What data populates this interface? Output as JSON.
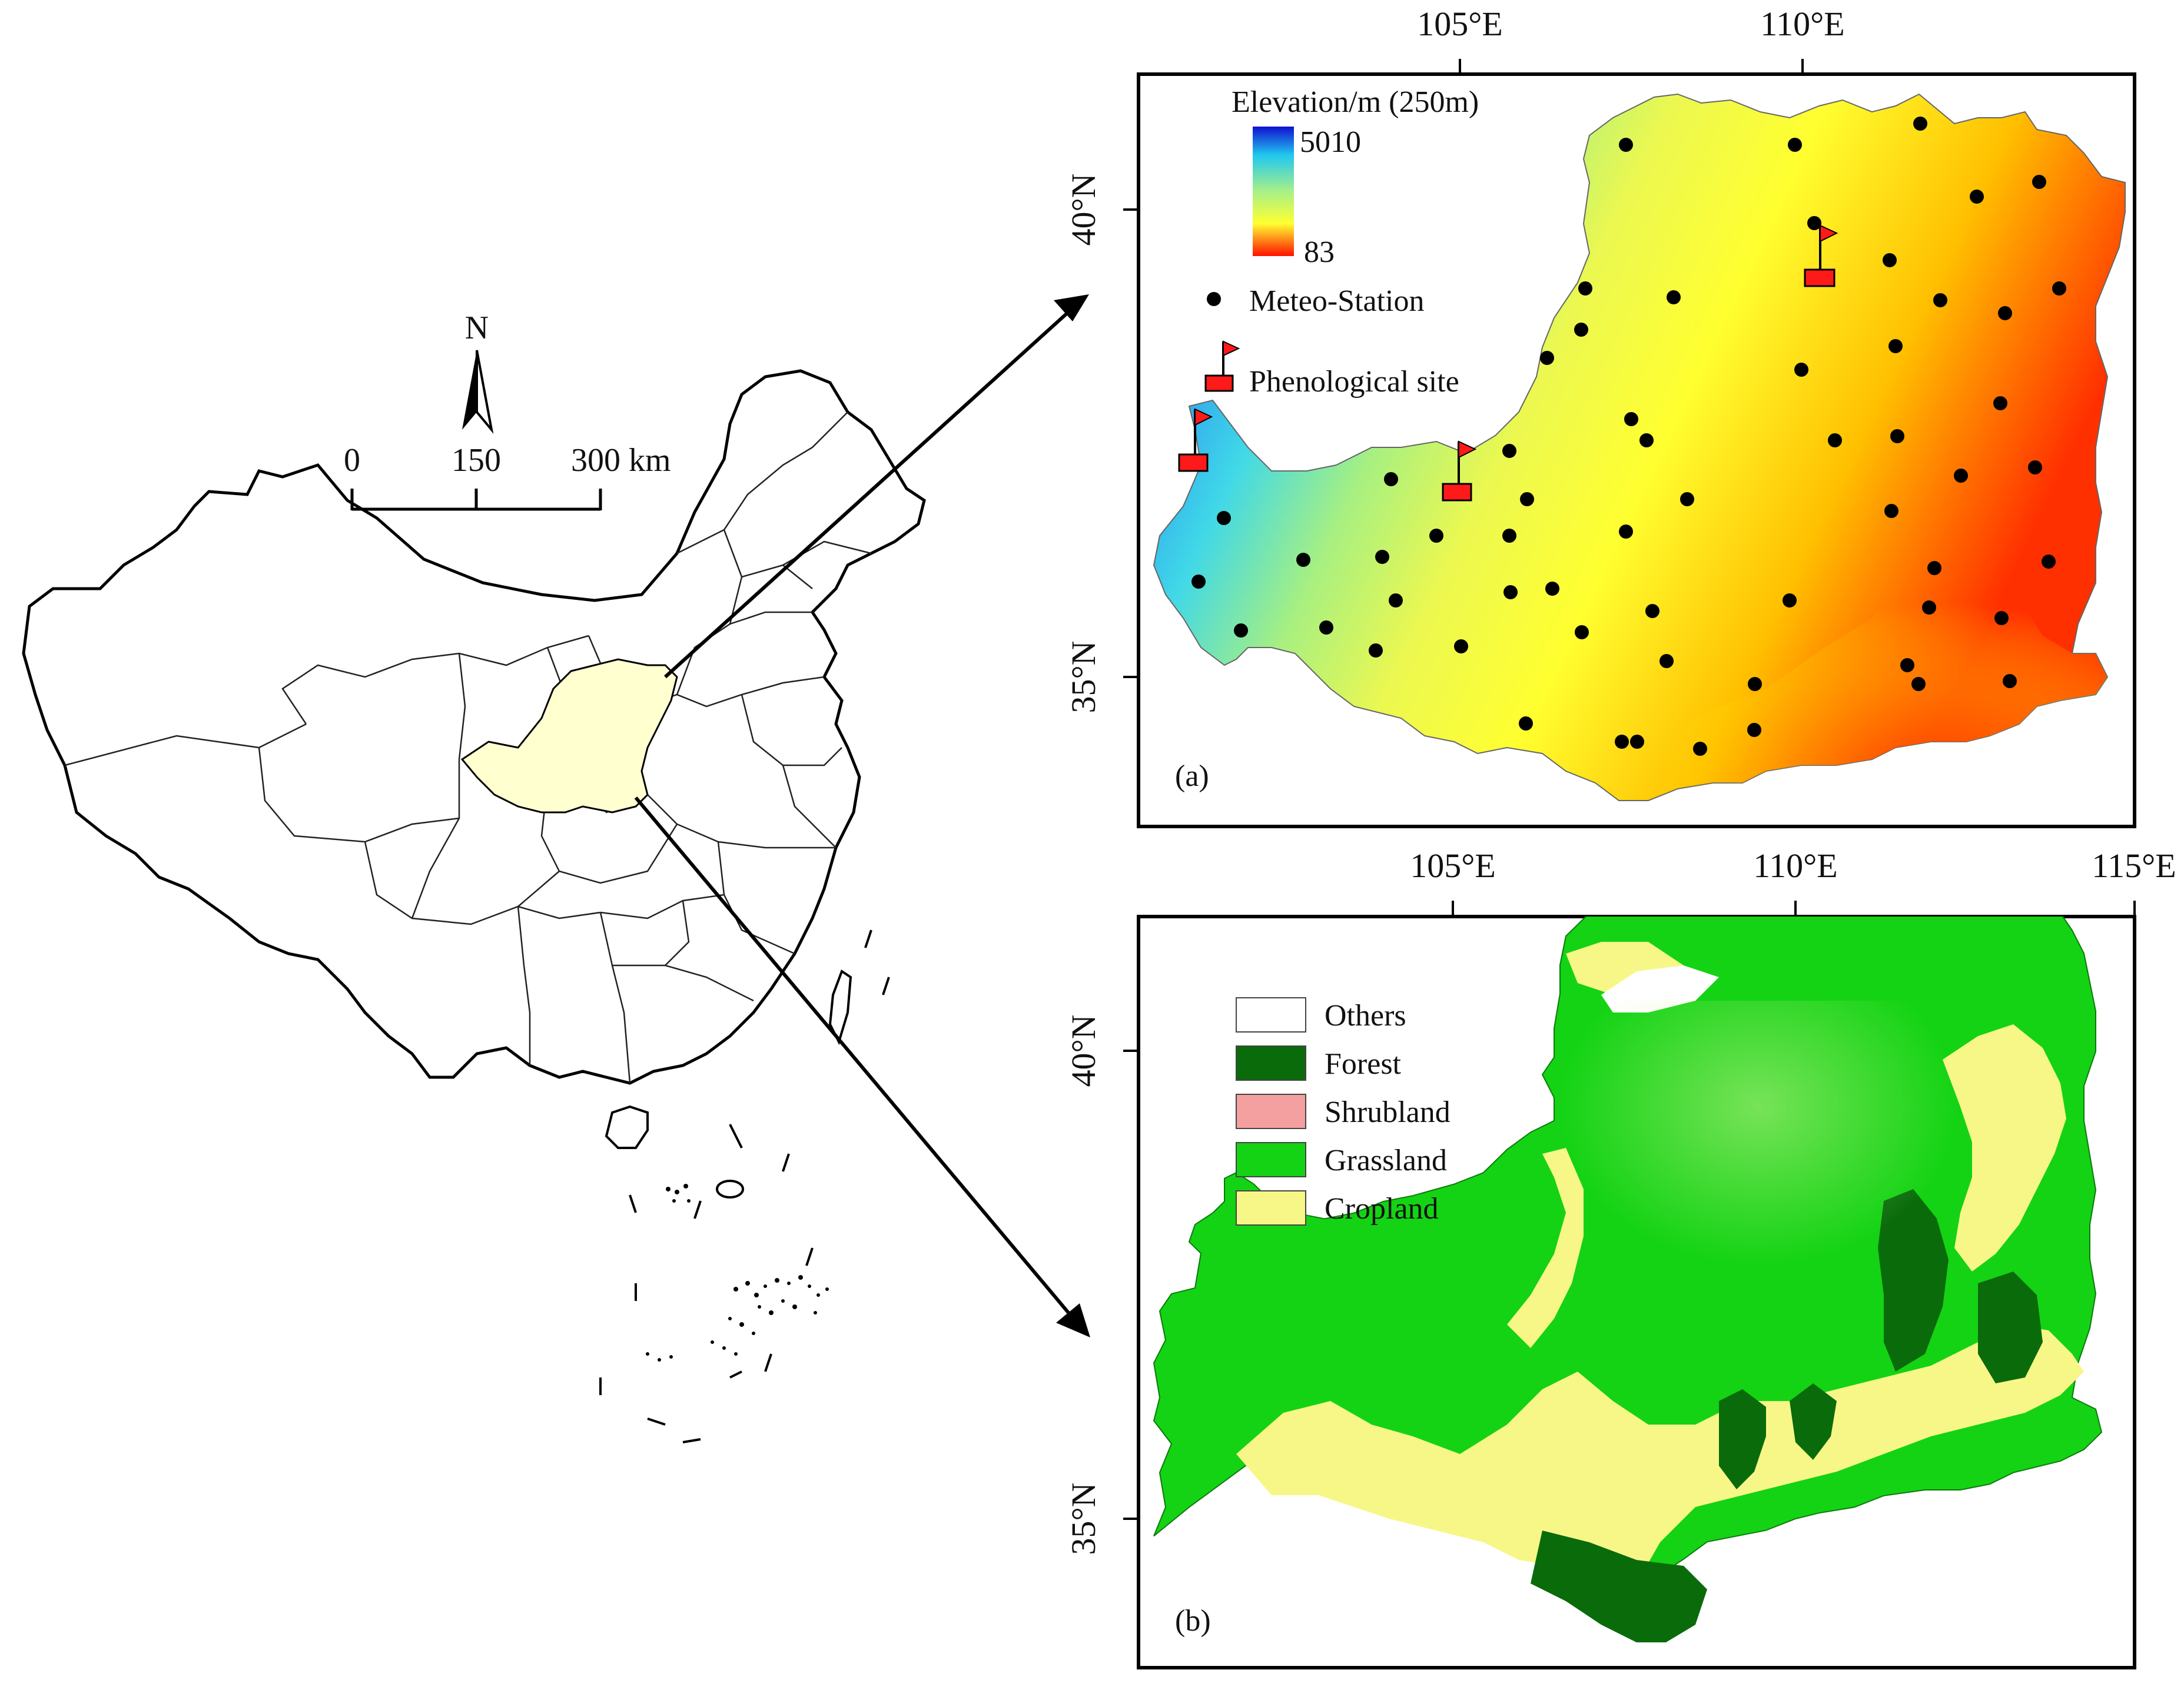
{
  "left_panel": {
    "north_label": "N",
    "scale_ticks": [
      "0",
      "150",
      "300 km"
    ]
  },
  "panel_a": {
    "top_lon_labels": [
      "105°E",
      "110°E"
    ],
    "left_lat_labels": [
      "40°N",
      "35°N"
    ],
    "legend_title": "Elevation/m (250m)",
    "elev_max": "5010",
    "elev_min": "83",
    "station_label": "Meteo-Station",
    "pheno_label": "Phenological site",
    "panel_label": "(a)"
  },
  "panel_b": {
    "top_lon_labels": [
      "105°E",
      "110°E",
      "115°E"
    ],
    "left_lat_labels": [
      "40°N",
      "35°N"
    ],
    "legend": [
      {
        "label": "Others",
        "color": "#ffffff"
      },
      {
        "label": "Forest",
        "color": "#0a6b0a"
      },
      {
        "label": "Shrubland",
        "color": "#f4a0a0"
      },
      {
        "label": "Grassland",
        "color": "#14d314"
      },
      {
        "label": "Cropland",
        "color": "#f7f787"
      }
    ],
    "panel_label": "(b)"
  },
  "colors": {
    "loess_highlight": "#ffffd0",
    "elev_high": "#1a1ad8",
    "elev_mid": "#ffff33",
    "elev_low": "#ff2a00",
    "station": "#000000",
    "flag": "#ff1a1a"
  }
}
